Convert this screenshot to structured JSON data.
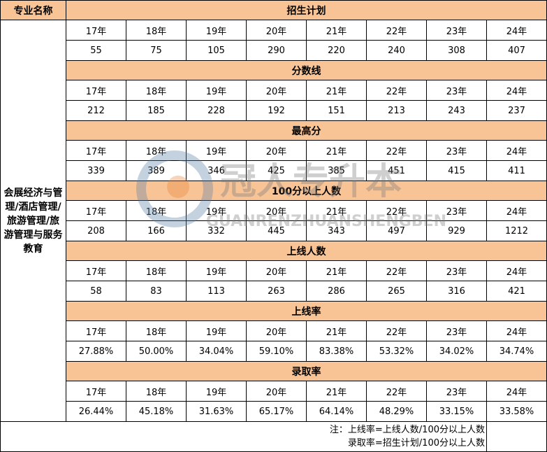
{
  "header_label": "专业名称",
  "major": "会展经济与管理/酒店管理/旅游管理/旅游管理与服务教育",
  "years": [
    "17年",
    "18年",
    "19年",
    "20年",
    "21年",
    "22年",
    "23年",
    "24年"
  ],
  "sections": [
    {
      "title": "招生计划",
      "values": [
        "55",
        "75",
        "105",
        "290",
        "220",
        "240",
        "308",
        "407"
      ]
    },
    {
      "title": "分数线",
      "values": [
        "212",
        "185",
        "228",
        "192",
        "151",
        "213",
        "243",
        "237"
      ]
    },
    {
      "title": "最高分",
      "values": [
        "339",
        "389",
        "346",
        "425",
        "385",
        "451",
        "415",
        "411"
      ]
    },
    {
      "title": "100分以上人数",
      "values": [
        "208",
        "166",
        "332",
        "445",
        "343",
        "497",
        "929",
        "1212"
      ]
    },
    {
      "title": "上线人数",
      "values": [
        "58",
        "83",
        "113",
        "263",
        "286",
        "265",
        "316",
        "421"
      ]
    },
    {
      "title": "上线率",
      "values": [
        "27.88%",
        "50.00%",
        "34.04%",
        "59.10%",
        "83.38%",
        "53.32%",
        "34.02%",
        "34.74%"
      ]
    },
    {
      "title": "录取率",
      "values": [
        "26.44%",
        "45.18%",
        "31.63%",
        "65.17%",
        "64.14%",
        "48.29%",
        "33.15%",
        "33.58%"
      ]
    }
  ],
  "notes": [
    "注：上线率=上线人数/100分以上人数",
    "录取率=招生计划/100分以上人数"
  ],
  "watermark": {
    "cn": "冠人专升本",
    "en": "GUANRENZHUANSHENGBEN"
  },
  "colors": {
    "header": "#f8c496"
  }
}
